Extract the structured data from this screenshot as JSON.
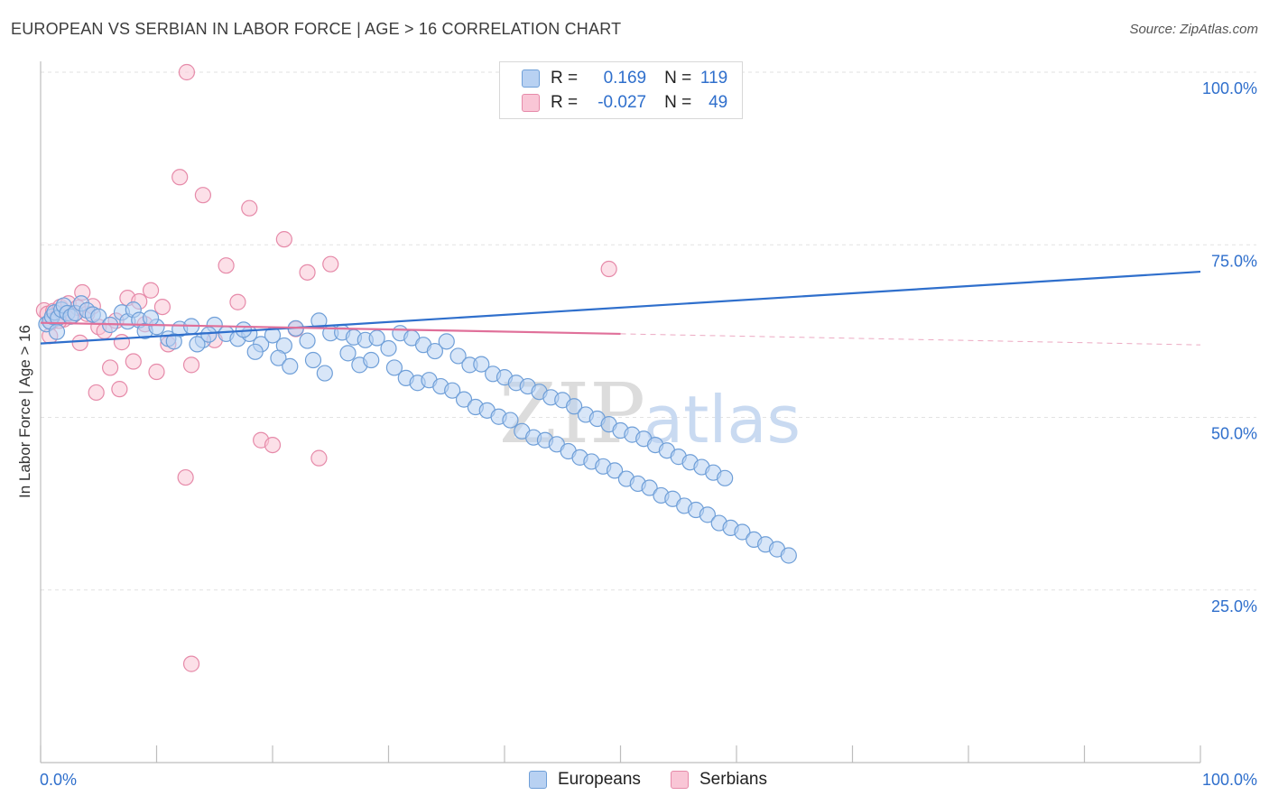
{
  "title": "EUROPEAN VS SERBIAN IN LABOR FORCE | AGE > 16 CORRELATION CHART",
  "source": "Source: ZipAtlas.com",
  "colors": {
    "europeans_fill": "#b8d1f2",
    "europeans_stroke": "#6f9fd8",
    "europeans_line": "#2f6fcc",
    "serbians_fill": "#f9c6d6",
    "serbians_stroke": "#e68aa9",
    "serbians_line": "#e0709a",
    "value_text": "#2f6fcc"
  },
  "legend": {
    "r_label": "R =",
    "n_label": "N =",
    "europeans_r": "0.169",
    "europeans_n": "119",
    "serbians_r": "-0.027",
    "serbians_n": "49"
  },
  "watermark": {
    "zip": "ZIP",
    "atlas": "atlas"
  },
  "chart_data": {
    "type": "scatter",
    "title": "EUROPEAN VS SERBIAN IN LABOR FORCE | AGE > 16 CORRELATION CHART",
    "xlabel": "",
    "ylabel": "In Labor Force | Age > 16",
    "xlim": [
      0,
      100
    ],
    "ylim": [
      0,
      100
    ],
    "x_tick_labels": [
      "0.0%",
      "100.0%"
    ],
    "y_tick_labels": [
      "25.0%",
      "50.0%",
      "75.0%",
      "100.0%"
    ],
    "y_tick_values": [
      25,
      50,
      75,
      100
    ],
    "grid": true,
    "legend_position": "top-center",
    "series": [
      {
        "name": "Europeans",
        "trend": {
          "x": [
            0,
            100
          ],
          "y": [
            60.7,
            71.1
          ]
        },
        "points": [
          [
            0.5,
            63.5
          ],
          [
            0.8,
            63.9
          ],
          [
            1.0,
            64.6
          ],
          [
            1.2,
            65.2
          ],
          [
            1.5,
            64.4
          ],
          [
            1.8,
            65.6
          ],
          [
            2.0,
            66.2
          ],
          [
            2.3,
            65.1
          ],
          [
            2.6,
            64.6
          ],
          [
            3.0,
            65.1
          ],
          [
            3.5,
            66.5
          ],
          [
            4.0,
            65.5
          ],
          [
            4.5,
            64.9
          ],
          [
            5.0,
            64.6
          ],
          [
            6.0,
            63.4
          ],
          [
            7.0,
            65.2
          ],
          [
            7.5,
            63.9
          ],
          [
            8.0,
            65.6
          ],
          [
            8.5,
            64.1
          ],
          [
            9.0,
            62.5
          ],
          [
            10.0,
            63.1
          ],
          [
            11.0,
            61.4
          ],
          [
            12.0,
            62.8
          ],
          [
            13.0,
            63.2
          ],
          [
            14.0,
            61.2
          ],
          [
            15.0,
            63.4
          ],
          [
            16.0,
            62.1
          ],
          [
            17.0,
            61.4
          ],
          [
            18.0,
            62.1
          ],
          [
            19.0,
            60.6
          ],
          [
            20.0,
            61.9
          ],
          [
            21.0,
            60.4
          ],
          [
            22.0,
            62.9
          ],
          [
            23.0,
            61.1
          ],
          [
            24.0,
            64.0
          ],
          [
            25.0,
            62.2
          ],
          [
            26.0,
            62.3
          ],
          [
            27.0,
            61.6
          ],
          [
            28.0,
            61.2
          ],
          [
            29.0,
            61.5
          ],
          [
            30.0,
            60.0
          ],
          [
            31.0,
            62.2
          ],
          [
            32.0,
            61.5
          ],
          [
            33.0,
            60.5
          ],
          [
            34.0,
            59.6
          ],
          [
            35.0,
            61.0
          ],
          [
            36.0,
            58.9
          ],
          [
            37.0,
            57.6
          ],
          [
            38.0,
            57.7
          ],
          [
            39.0,
            56.3
          ],
          [
            40.0,
            55.8
          ],
          [
            41.0,
            55.0
          ],
          [
            42.0,
            54.5
          ],
          [
            43.0,
            53.7
          ],
          [
            44.0,
            52.9
          ],
          [
            45.0,
            52.5
          ],
          [
            46.0,
            51.6
          ],
          [
            47.0,
            50.4
          ],
          [
            48.0,
            49.8
          ],
          [
            49.0,
            49.0
          ],
          [
            50.0,
            48.1
          ],
          [
            51.0,
            47.5
          ],
          [
            52.0,
            46.9
          ],
          [
            53.0,
            46.0
          ],
          [
            54.0,
            45.2
          ],
          [
            55.0,
            44.3
          ],
          [
            56.0,
            43.5
          ],
          [
            57.0,
            42.8
          ],
          [
            58.0,
            42.0
          ],
          [
            59.0,
            41.2
          ],
          [
            1.4,
            62.4
          ],
          [
            9.5,
            64.4
          ],
          [
            11.5,
            61.0
          ],
          [
            13.5,
            60.6
          ],
          [
            14.5,
            62.0
          ],
          [
            17.5,
            62.7
          ],
          [
            18.5,
            59.5
          ],
          [
            20.5,
            58.6
          ],
          [
            21.5,
            57.4
          ],
          [
            23.5,
            58.3
          ],
          [
            24.5,
            56.4
          ],
          [
            26.5,
            59.3
          ],
          [
            27.5,
            57.6
          ],
          [
            28.5,
            58.3
          ],
          [
            30.5,
            57.2
          ],
          [
            31.5,
            55.7
          ],
          [
            32.5,
            55.0
          ],
          [
            33.5,
            55.4
          ],
          [
            34.5,
            54.5
          ],
          [
            35.5,
            53.9
          ],
          [
            36.5,
            52.6
          ],
          [
            37.5,
            51.5
          ],
          [
            38.5,
            51.0
          ],
          [
            39.5,
            50.1
          ],
          [
            40.5,
            49.6
          ],
          [
            41.5,
            48.0
          ],
          [
            42.5,
            47.1
          ],
          [
            43.5,
            46.7
          ],
          [
            44.5,
            46.1
          ],
          [
            45.5,
            45.1
          ],
          [
            46.5,
            44.2
          ],
          [
            47.5,
            43.6
          ],
          [
            48.5,
            42.9
          ],
          [
            49.5,
            42.3
          ],
          [
            50.5,
            41.1
          ],
          [
            51.5,
            40.4
          ],
          [
            52.5,
            39.8
          ],
          [
            53.5,
            38.7
          ],
          [
            54.5,
            38.2
          ],
          [
            55.5,
            37.2
          ],
          [
            56.5,
            36.6
          ],
          [
            57.5,
            35.9
          ],
          [
            58.5,
            34.7
          ],
          [
            59.5,
            34.0
          ],
          [
            60.5,
            33.4
          ],
          [
            61.5,
            32.3
          ],
          [
            62.5,
            31.6
          ],
          [
            63.5,
            30.9
          ],
          [
            64.5,
            30.0
          ]
        ]
      },
      {
        "name": "Serbians",
        "trend": {
          "x": [
            0,
            50
          ],
          "y": [
            63.7,
            62.1
          ]
        },
        "points": [
          [
            0.3,
            65.5
          ],
          [
            0.6,
            65.0
          ],
          [
            0.9,
            63.8
          ],
          [
            1.1,
            65.4
          ],
          [
            1.4,
            64.5
          ],
          [
            1.7,
            66.0
          ],
          [
            2.0,
            64.2
          ],
          [
            2.4,
            66.5
          ],
          [
            2.8,
            64.8
          ],
          [
            3.2,
            65.9
          ],
          [
            3.6,
            68.1
          ],
          [
            4.0,
            65.0
          ],
          [
            4.5,
            66.1
          ],
          [
            5.0,
            63.1
          ],
          [
            5.5,
            62.5
          ],
          [
            6.0,
            57.2
          ],
          [
            6.5,
            64.0
          ],
          [
            7.0,
            60.9
          ],
          [
            7.5,
            67.3
          ],
          [
            8.0,
            58.1
          ],
          [
            8.5,
            66.8
          ],
          [
            9.0,
            63.5
          ],
          [
            9.5,
            68.4
          ],
          [
            10.0,
            56.6
          ],
          [
            10.5,
            66.0
          ],
          [
            11.0,
            60.6
          ],
          [
            12.0,
            84.8
          ],
          [
            13.0,
            57.6
          ],
          [
            14.0,
            82.2
          ],
          [
            15.0,
            61.2
          ],
          [
            16.0,
            72.0
          ],
          [
            17.0,
            66.7
          ],
          [
            18.0,
            80.3
          ],
          [
            19.0,
            46.7
          ],
          [
            20.0,
            46.0
          ],
          [
            21.0,
            75.8
          ],
          [
            22.0,
            62.8
          ],
          [
            23.0,
            71.0
          ],
          [
            24.0,
            44.1
          ],
          [
            25.0,
            72.2
          ],
          [
            0.8,
            61.8
          ],
          [
            1.6,
            64.0
          ],
          [
            3.4,
            60.8
          ],
          [
            4.8,
            53.6
          ],
          [
            6.8,
            54.1
          ],
          [
            12.5,
            41.3
          ],
          [
            13.0,
            14.3
          ],
          [
            12.6,
            100.0
          ],
          [
            49.0,
            71.5
          ]
        ]
      }
    ]
  }
}
